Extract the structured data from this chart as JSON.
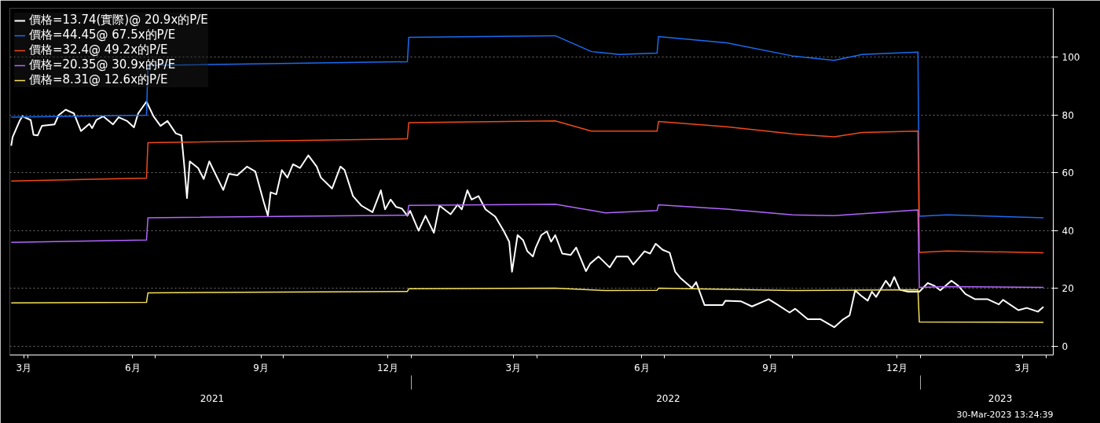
{
  "chart_data": {
    "type": "line",
    "legend": "top left",
    "grid": true,
    "xlim": [
      "2021-03-19",
      "2023-04-06"
    ],
    "x2lim": [
      "2021-03-19",
      "2023-04-06"
    ],
    "ylim": [
      -3,
      117
    ],
    "yticks": [
      0,
      20,
      40,
      60,
      80,
      100
    ],
    "xticks": [
      {
        "value": "2021-03-29",
        "label": "3月"
      },
      {
        "value": "2021-06-15",
        "label": "6月"
      },
      {
        "value": "2021-09-15",
        "label": "9月"
      },
      {
        "value": "2021-12-15",
        "label": "12月"
      },
      {
        "value": "2022-03-15",
        "label": "3月"
      },
      {
        "value": "2022-06-15",
        "label": "6月"
      },
      {
        "value": "2022-09-15",
        "label": "9月"
      },
      {
        "value": "2022-12-15",
        "label": "12月"
      },
      {
        "value": "2023-03-15",
        "label": "3月"
      },
      {
        "value": "2021-04-01",
        "label": null
      },
      {
        "value": "2021-07-01",
        "label": null
      },
      {
        "value": "2021-10-01",
        "label": null
      },
      {
        "value": "2022-01-01",
        "label": null
      },
      {
        "value": "2022-04-01",
        "label": null
      },
      {
        "value": "2022-07-01",
        "label": null
      },
      {
        "value": "2022-10-01",
        "label": null
      },
      {
        "value": "2023-01-01",
        "label": null
      },
      {
        "value": "2023-04-01",
        "label": null
      }
    ],
    "x2ticks": [
      {
        "value": "2021-08-11",
        "label": "2021"
      },
      {
        "value": "2022-07-04",
        "label": "2022"
      },
      {
        "value": "2023-02-27",
        "label": "2023"
      },
      {
        "value": "2022-01-01",
        "label": null
      },
      {
        "value": "2023-01-01",
        "label": null
      }
    ],
    "annotations": [
      "30-Mar-2023 13:24:39"
    ],
    "series": [
      {
        "name": "價格=13.74(實際)@ 20.9x的P/E",
        "color": "#ffffff",
        "x": [
          "2021-03-20",
          "2021-03-21",
          "2021-03-26",
          "2021-03-28",
          "2021-04-03",
          "2021-04-05",
          "2021-04-08",
          "2021-04-11",
          "2021-04-20",
          "2021-04-23",
          "2021-04-28",
          "2021-05-04",
          "2021-05-09",
          "2021-05-15",
          "2021-05-17",
          "2021-05-20",
          "2021-05-25",
          "2021-06-01",
          "2021-06-05",
          "2021-06-11",
          "2021-06-16",
          "2021-06-19",
          "2021-06-25",
          "2021-06-30",
          "2021-07-05",
          "2021-07-10",
          "2021-07-16",
          "2021-07-20",
          "2021-07-22",
          "2021-07-24",
          "2021-07-26",
          "2021-08-01",
          "2021-08-05",
          "2021-08-09",
          "2021-08-12",
          "2021-08-19",
          "2021-08-23",
          "2021-08-29",
          "2021-09-05",
          "2021-09-11",
          "2021-09-17",
          "2021-09-20",
          "2021-09-22",
          "2021-09-26",
          "2021-09-30",
          "2021-10-04",
          "2021-10-08",
          "2021-10-13",
          "2021-10-19",
          "2021-10-25",
          "2021-10-28",
          "2021-11-05",
          "2021-11-11",
          "2021-11-14",
          "2021-11-20",
          "2021-11-26",
          "2021-12-04",
          "2021-12-10",
          "2021-12-13",
          "2021-12-17",
          "2021-12-21",
          "2021-12-25",
          "2021-12-29",
          "2021-12-31",
          "2022-01-06",
          "2022-01-11",
          "2022-01-17",
          "2022-01-21",
          "2022-01-29",
          "2022-02-03",
          "2022-02-06",
          "2022-02-10",
          "2022-02-13",
          "2022-02-18",
          "2022-02-23",
          "2022-03-02",
          "2022-03-08",
          "2022-03-12",
          "2022-03-14",
          "2022-03-18",
          "2022-03-22",
          "2022-03-25",
          "2022-03-29",
          "2022-03-31",
          "2022-04-04",
          "2022-04-08",
          "2022-04-11",
          "2022-04-14",
          "2022-04-19",
          "2022-04-25",
          "2022-04-29",
          "2022-05-06",
          "2022-05-09",
          "2022-05-15",
          "2022-05-23",
          "2022-05-28",
          "2022-06-05",
          "2022-06-09",
          "2022-06-17",
          "2022-06-21",
          "2022-06-25",
          "2022-06-30",
          "2022-07-05",
          "2022-07-09",
          "2022-07-13",
          "2022-07-21",
          "2022-07-24",
          "2022-07-30",
          "2022-08-12",
          "2022-08-14",
          "2022-08-25",
          "2022-09-02",
          "2022-09-14",
          "2022-09-20",
          "2022-09-29",
          "2022-10-03",
          "2022-10-12",
          "2022-10-21",
          "2022-10-31",
          "2022-11-06",
          "2022-11-11",
          "2022-11-15",
          "2022-11-19",
          "2022-11-24",
          "2022-11-27",
          "2022-11-30",
          "2022-12-07",
          "2022-12-10",
          "2022-12-13",
          "2022-12-17",
          "2022-12-23",
          "2022-12-31",
          "2023-01-06",
          "2023-01-11",
          "2023-01-15",
          "2023-01-23",
          "2023-01-28",
          "2023-02-02",
          "2023-02-09",
          "2023-02-18",
          "2023-02-26",
          "2023-03-01",
          "2023-03-12",
          "2023-03-18",
          "2023-03-26",
          "2023-03-30"
        ],
        "values": [
          69.4,
          72.4,
          78,
          79.6,
          78.3,
          73.2,
          73,
          76.3,
          76.8,
          80,
          81.9,
          80.6,
          74.5,
          77,
          75.5,
          78.3,
          79.6,
          76.8,
          79.3,
          78,
          75.8,
          80.6,
          84.7,
          79.6,
          76.3,
          78,
          73.7,
          73,
          62.8,
          51.3,
          64,
          61.7,
          57.9,
          64,
          61,
          54.1,
          59.7,
          59.2,
          62.2,
          60.5,
          50,
          45.2,
          53.3,
          52.6,
          61,
          58.4,
          63,
          61.7,
          66.1,
          62.2,
          58.4,
          54.6,
          62.2,
          61,
          52,
          48.7,
          46.4,
          54,
          47.4,
          50.8,
          48.2,
          47.7,
          45.2,
          46.9,
          40,
          45.2,
          39.3,
          48.7,
          45.7,
          49,
          47.4,
          54,
          50.8,
          52,
          47.4,
          44.9,
          40,
          36.2,
          25.8,
          38.5,
          36.7,
          32.9,
          31.1,
          34.2,
          38.5,
          39.8,
          36.2,
          38.5,
          32.1,
          31.6,
          34.2,
          26,
          28.6,
          31.1,
          27.3,
          31.1,
          31.1,
          28.3,
          32.9,
          32.1,
          35.5,
          33.4,
          32.4,
          25.8,
          23.5,
          20.2,
          22.2,
          14.3,
          14.3,
          15.8,
          15.6,
          13.8,
          16.3,
          14.5,
          11.7,
          13,
          9.4,
          9.4,
          6.6,
          9.2,
          10.7,
          19.4,
          17.6,
          15.8,
          18.9,
          17.1,
          22.7,
          20.7,
          24,
          19.6,
          18.9,
          18.9,
          21.9,
          20.9,
          19.4,
          22.7,
          20.9,
          18.1,
          16.3,
          16.3,
          14.5,
          16.1,
          12.5,
          13.3,
          12,
          13.7
        ]
      },
      {
        "name": "價格=44.45@ 67.5x的P/E",
        "color": "#1a6cf0",
        "x": [
          "2021-03-20",
          "2021-06-25",
          "2021-06-26",
          "2021-12-29",
          "2021-12-30",
          "2022-04-14",
          "2022-05-10",
          "2022-05-30",
          "2022-06-26",
          "2022-06-27",
          "2022-08-15",
          "2022-10-01",
          "2022-10-31",
          "2022-11-20",
          "2022-12-30",
          "2022-12-31",
          "2023-01-20",
          "2023-03-30"
        ],
        "values": [
          79.3,
          80,
          97.2,
          98.5,
          106.9,
          107.5,
          102,
          101,
          101.5,
          107.2,
          105,
          100.5,
          99,
          101,
          101.8,
          45,
          45.5,
          44.5
        ]
      },
      {
        "name": "價格=32.4@ 49.2x的P/E",
        "color": "#f04a1a",
        "x": [
          "2021-03-20",
          "2021-06-25",
          "2021-06-26",
          "2021-12-29",
          "2021-12-30",
          "2022-04-14",
          "2022-05-10",
          "2022-06-26",
          "2022-06-27",
          "2022-08-15",
          "2022-10-01",
          "2022-10-31",
          "2022-11-20",
          "2022-12-30",
          "2022-12-31",
          "2023-01-20",
          "2023-03-30"
        ],
        "values": [
          57.2,
          58.2,
          70.5,
          71.8,
          77.4,
          78,
          74.5,
          74.5,
          77.8,
          76,
          73.5,
          72.5,
          74,
          74.5,
          32.5,
          33,
          32.4
        ]
      },
      {
        "name": "價格=20.35@ 30.9x的P/E",
        "color": "#b266ff",
        "x": [
          "2021-03-20",
          "2021-06-25",
          "2021-06-26",
          "2021-12-29",
          "2021-12-30",
          "2022-04-14",
          "2022-05-20",
          "2022-06-26",
          "2022-06-27",
          "2022-08-15",
          "2022-10-01",
          "2022-10-31",
          "2022-12-30",
          "2022-12-31",
          "2023-01-20",
          "2023-03-30"
        ],
        "values": [
          36,
          36.8,
          44.5,
          45.4,
          48.8,
          49.2,
          46.2,
          47,
          49,
          47.5,
          45.5,
          45.2,
          47.2,
          20.4,
          20.7,
          20.4
        ]
      },
      {
        "name": "價格=8.31@ 12.6x的P/E",
        "color": "#f5e15a",
        "x": [
          "2021-03-20",
          "2021-06-25",
          "2021-06-26",
          "2021-12-29",
          "2021-12-30",
          "2022-04-14",
          "2022-05-20",
          "2022-06-26",
          "2022-06-27",
          "2022-10-01",
          "2022-12-30",
          "2022-12-31",
          "2023-03-30"
        ],
        "values": [
          15,
          15.2,
          18.5,
          19,
          19.9,
          20.1,
          19.3,
          19.4,
          20.1,
          19.3,
          19.6,
          8.4,
          8.3
        ]
      }
    ]
  }
}
